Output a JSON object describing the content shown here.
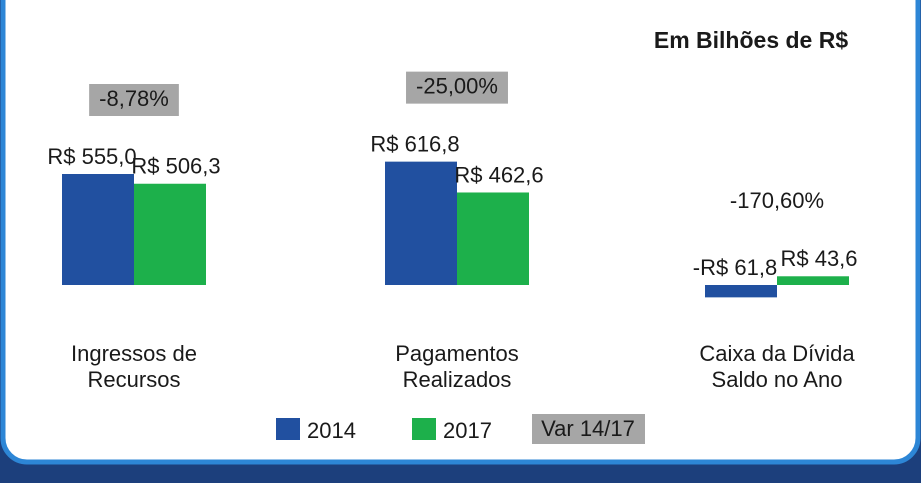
{
  "chart_data": {
    "type": "bar",
    "title": "Em Bilhões de R$",
    "categories": [
      "Ingressos de Recursos",
      "Pagamentos Realizados",
      "Caixa da Dívida Saldo no Ano"
    ],
    "series": [
      {
        "name": "2014",
        "color": "#2150a0",
        "values": [
          555.0,
          616.8,
          -61.8
        ],
        "value_labels": [
          "R$ 555,0",
          "R$ 616,8",
          "-R$ 61,8"
        ]
      },
      {
        "name": "2017",
        "color": "#1db04b",
        "values": [
          506.3,
          462.6,
          43.6
        ],
        "value_labels": [
          "R$ 506,3",
          "R$ 462,6",
          "R$ 43,6"
        ]
      }
    ],
    "variation": {
      "name": "Var 14/17",
      "color": "#a6a6a6",
      "values": [
        -8.78,
        -25.0,
        -170.6
      ],
      "value_labels": [
        "-8,78%",
        "-25,00%",
        "-170,60%"
      ]
    }
  }
}
